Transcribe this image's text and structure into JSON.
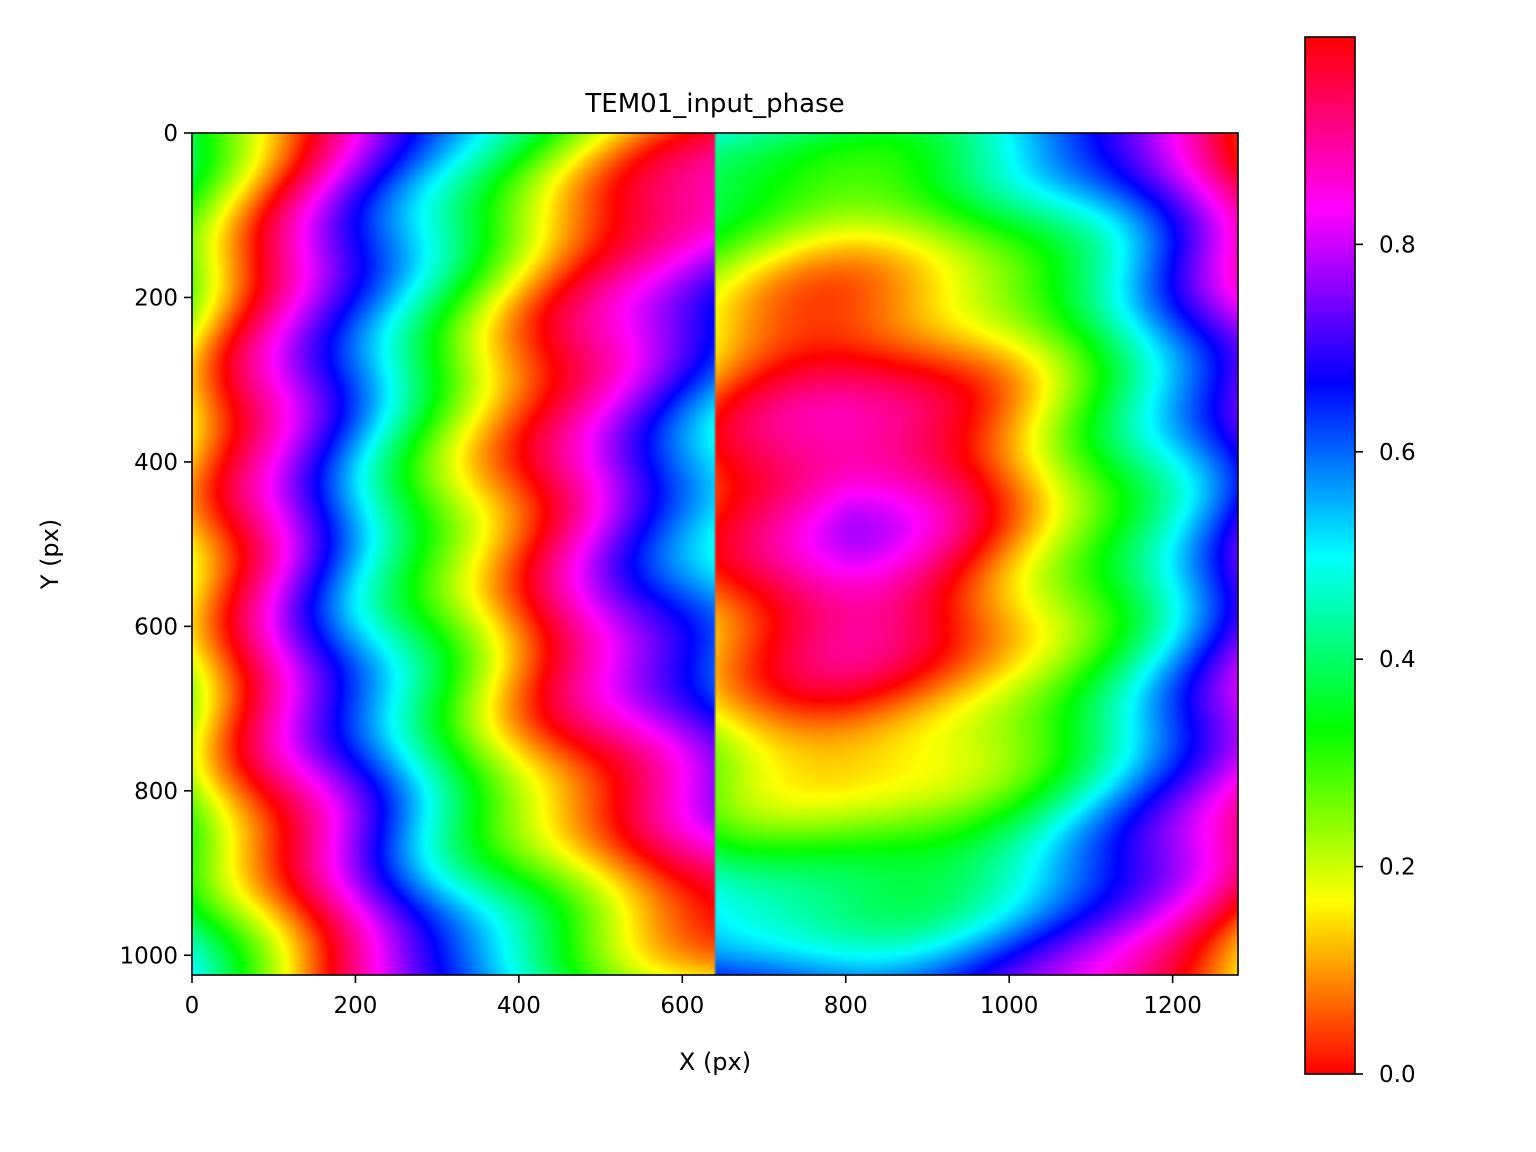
{
  "chart_data": {
    "type": "heatmap",
    "title": "TEM01_input_phase",
    "xlabel": "X (px)",
    "ylabel": "Y (px)",
    "xlim": [
      0,
      1280
    ],
    "ylim": [
      1024,
      0
    ],
    "x_ticks": [
      "0",
      "200",
      "400",
      "600",
      "800",
      "1000",
      "1200"
    ],
    "y_ticks": [
      "0",
      "200",
      "400",
      "600",
      "800",
      "1000"
    ],
    "colorbar": {
      "colormap": "hsv",
      "range": [
        0.0,
        1.0
      ],
      "ticks": [
        "0.0",
        "0.2",
        "0.4",
        "0.6",
        "0.8"
      ]
    },
    "grid": false,
    "phase_discontinuity_x": 640,
    "note_values": "Phase values normalized 0-1; left half and right half offset by ~0.5 (TEM01 pi phase step)"
  }
}
